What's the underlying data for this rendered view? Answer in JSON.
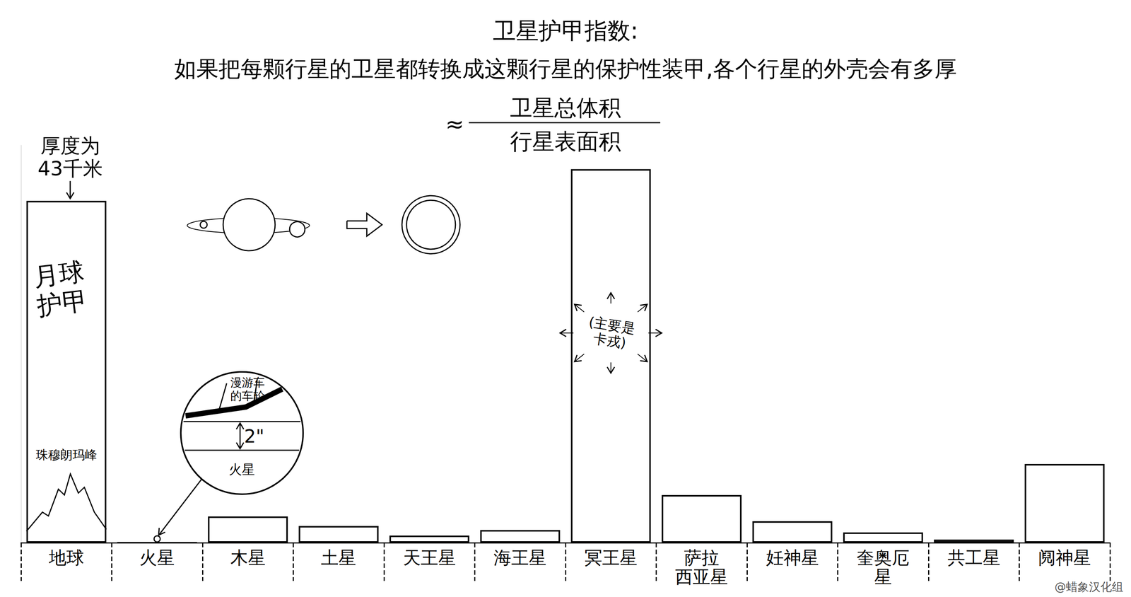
{
  "chart_data": {
    "type": "bar",
    "title": "卫星护甲指数:",
    "subtitle": "如果把每颗行星的卫星都转换成这颗行星的保护性装甲,各个行星的外壳会有多厚",
    "formula": {
      "approx": "≈",
      "numerator": "卫星总体积",
      "denominator": "行星表面积"
    },
    "categories": [
      "地球",
      "火星",
      "木星",
      "土星",
      "天王星",
      "海王星",
      "冥王星",
      "萨拉\n西亚星",
      "妊神星",
      "奎奥厄\n星",
      "共工星",
      "阋神星"
    ],
    "values": [
      43,
      5e-05,
      3.3,
      2.1,
      0.9,
      1.6,
      47,
      6,
      2.7,
      1.3,
      0.4,
      9.9
    ],
    "color": "#000000",
    "ylim": [
      0,
      50
    ],
    "grid": false,
    "tick_labels": "x",
    "annotations": {
      "earth_thickness": "厚度为\n43千米",
      "earth_armor": "月球\n护甲",
      "everest": "珠穆朗玛峰",
      "pluto": "(主要是\n卡戎)",
      "mars_wheel": "漫游车\n的车轮",
      "mars_depth": "2\"",
      "mars_surface": "火星"
    },
    "credit": "@蜡象汉化组"
  }
}
